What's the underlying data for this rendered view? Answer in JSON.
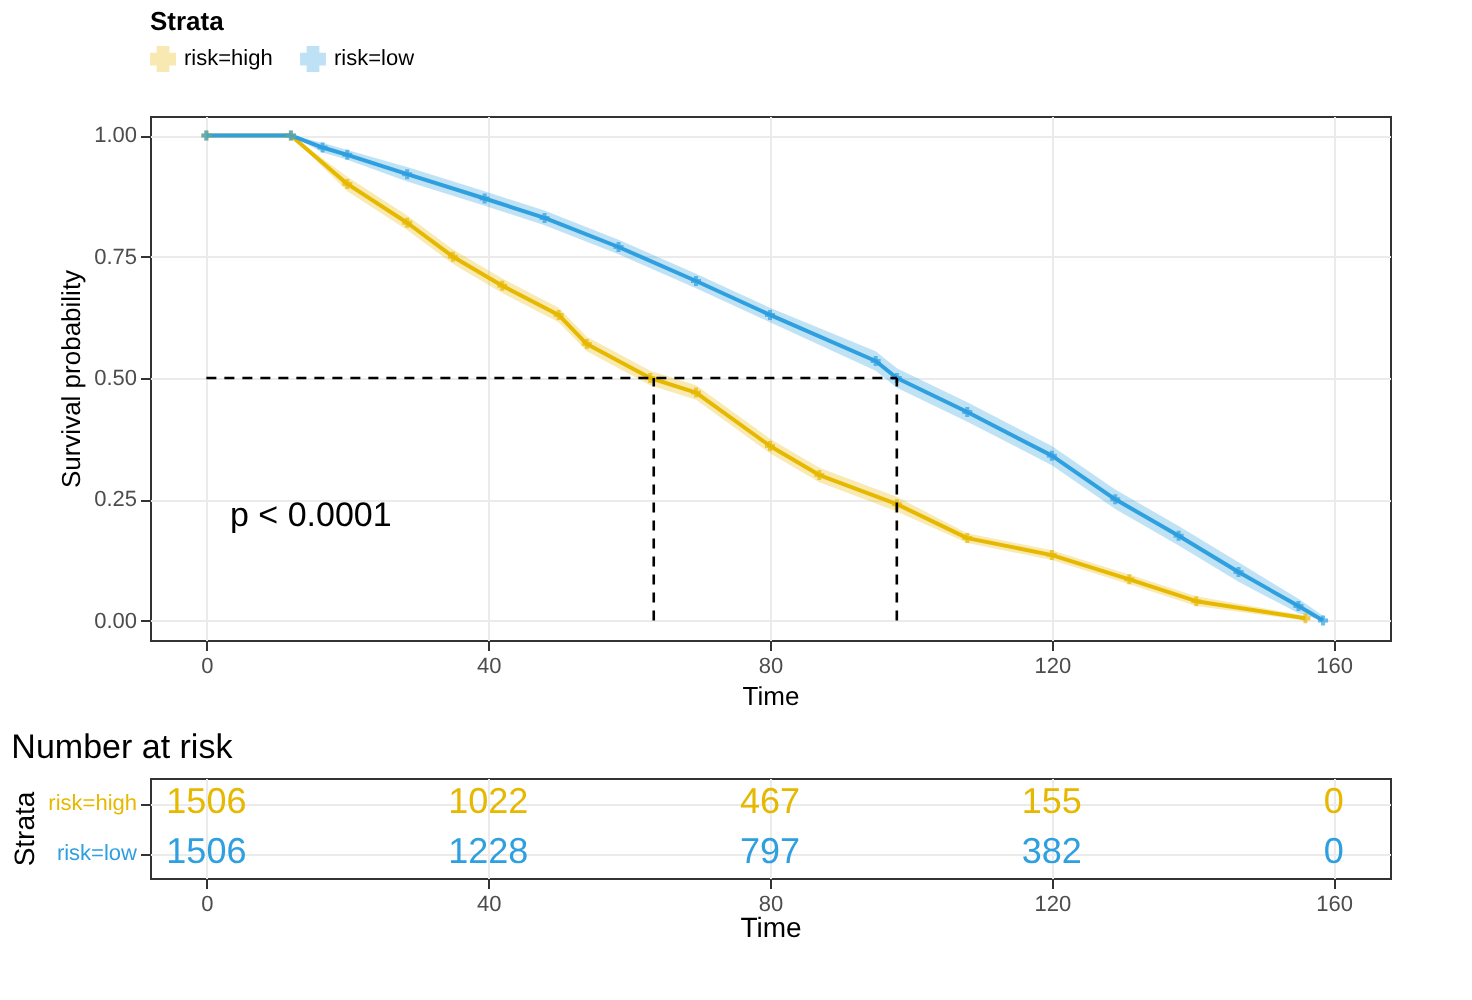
{
  "chart_data": [
    {
      "type": "line",
      "xlabel": "Time",
      "ylabel": "Survival probability",
      "legend_title": "Strata",
      "legend": "top",
      "grid": true,
      "marker": "cross",
      "xlim": [
        -8,
        168
      ],
      "xticks": [
        0,
        40,
        80,
        120,
        160
      ],
      "ylim": [
        -0.04,
        1.04
      ],
      "yticks": [
        {
          "value": 0,
          "label": "0.00"
        },
        {
          "value": 0.25,
          "label": "0.25"
        },
        {
          "value": 0.5,
          "label": "0.50"
        },
        {
          "value": 0.75,
          "label": "0.75"
        },
        {
          "value": 1,
          "label": "1.00"
        }
      ],
      "series": [
        {
          "name": "risk=high",
          "color": "#e7b800",
          "x": [
            0,
            12,
            20,
            28.5,
            35,
            42,
            50,
            54,
            63,
            69.5,
            80,
            87,
            98,
            108,
            120,
            131,
            140.5,
            156
          ],
          "values": [
            1,
            1,
            0.9,
            0.82,
            0.75,
            0.69,
            0.63,
            0.57,
            0.5,
            0.47,
            0.36,
            0.3,
            0.24,
            0.17,
            0.135,
            0.085,
            0.04,
            0.005
          ],
          "lower": [
            1,
            1,
            0.885,
            0.805,
            0.735,
            0.675,
            0.615,
            0.555,
            0.485,
            0.455,
            0.345,
            0.285,
            0.225,
            0.16,
            0.125,
            0.075,
            0.03,
            0
          ],
          "upper": [
            1,
            1,
            0.915,
            0.835,
            0.765,
            0.705,
            0.645,
            0.585,
            0.515,
            0.485,
            0.375,
            0.315,
            0.255,
            0.18,
            0.145,
            0.095,
            0.05,
            0.01
          ]
        },
        {
          "name": "risk=low",
          "color": "#2e9fdf",
          "x": [
            0,
            12,
            16.5,
            20,
            28.5,
            39.5,
            48,
            58.5,
            69.5,
            80,
            95,
            98,
            108,
            120,
            129,
            138,
            146.5,
            155,
            158.5
          ],
          "values": [
            1,
            1,
            0.975,
            0.96,
            0.92,
            0.87,
            0.83,
            0.77,
            0.7,
            0.63,
            0.535,
            0.5,
            0.43,
            0.34,
            0.25,
            0.175,
            0.1,
            0.03,
            0
          ],
          "lower": [
            1,
            1,
            0.965,
            0.95,
            0.905,
            0.855,
            0.815,
            0.755,
            0.685,
            0.615,
            0.515,
            0.48,
            0.41,
            0.32,
            0.23,
            0.155,
            0.08,
            0.015,
            0
          ],
          "upper": [
            1,
            1,
            0.985,
            0.97,
            0.935,
            0.885,
            0.845,
            0.785,
            0.715,
            0.645,
            0.555,
            0.52,
            0.45,
            0.36,
            0.27,
            0.195,
            0.12,
            0.045,
            0.01
          ]
        }
      ],
      "ref_lines": [
        {
          "axis": "y",
          "value": 0.5,
          "line_style": "dashed"
        },
        {
          "axis": "x",
          "value": 63.5,
          "line_style": "dashed"
        },
        {
          "axis": "x",
          "value": 98,
          "line_style": "dashed"
        }
      ],
      "annotations": [
        "p < 0.0001"
      ]
    },
    {
      "type": "heatmap",
      "title": "Number at risk",
      "xlabel": "Time",
      "ylabel": "Strata",
      "grid": true,
      "data_labels": true,
      "categories": [
        "0",
        "40",
        "80",
        "120",
        "160"
      ],
      "y_categories": [
        "risk=high",
        "risk=low"
      ],
      "cells": [
        [
          1506,
          1022,
          467,
          155,
          0
        ],
        [
          1506,
          1228,
          797,
          382,
          0
        ]
      ]
    }
  ]
}
